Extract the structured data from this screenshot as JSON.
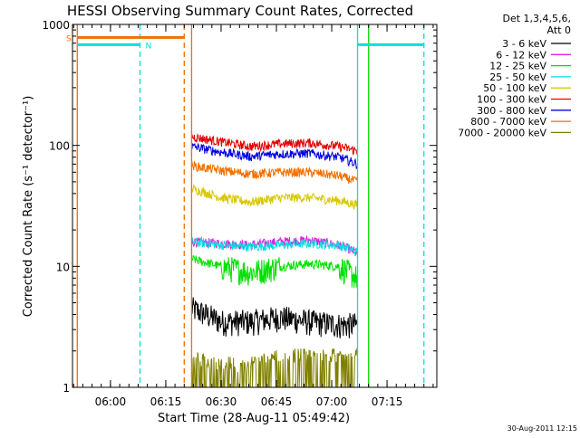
{
  "chart_data": {
    "type": "line",
    "title": "HESSI Observing Summary Count Rates, Corrected",
    "xlabel": "Start Time (28-Aug-11 05:49:42)",
    "ylabel": "Corrected Count Rate (s⁻¹ detector⁻¹)",
    "y_scale": "log",
    "x_range": [
      "05:49:42",
      "07:28:30"
    ],
    "ylim": [
      1,
      1000
    ],
    "x_ticks": [
      "06:00",
      "06:15",
      "06:30",
      "06:45",
      "07:00",
      "07:15"
    ],
    "y_ticks": [
      "1",
      "10",
      "100",
      "1000"
    ],
    "legend": {
      "placement": "right, outside plot",
      "header": [
        "Det 1,3,4,5,6,",
        "Att 0"
      ],
      "entries": [
        {
          "name": "3 - 6 keV",
          "color": "#000000"
        },
        {
          "name": "6 - 12 keV",
          "color": "#e020e0"
        },
        {
          "name": "12 - 25 keV",
          "color": "#00e000"
        },
        {
          "name": "25 - 50 keV",
          "color": "#00e0e0"
        },
        {
          "name": "50 - 100 keV",
          "color": "#d8c800"
        },
        {
          "name": "100 - 300 keV",
          "color": "#e00000"
        },
        {
          "name": "300 - 800 keV",
          "color": "#0000e0"
        },
        {
          "name": "800 - 7000 keV",
          "color": "#f07000"
        },
        {
          "name": "7000 - 20000 keV",
          "color": "#808000"
        }
      ]
    },
    "series": [
      {
        "name": "3 - 6 keV",
        "color": "#000000",
        "x": [
          "06:22",
          "06:30",
          "06:38",
          "06:46",
          "06:54",
          "07:02",
          "07:07"
        ],
        "y": [
          4.5,
          3.5,
          3.5,
          3.8,
          3.5,
          3.3,
          3.3
        ]
      },
      {
        "name": "6 - 12 keV",
        "color": "#e020e0",
        "x": [
          "06:22",
          "06:30",
          "06:38",
          "06:46",
          "06:54",
          "07:02",
          "07:07"
        ],
        "y": [
          16,
          15.5,
          15,
          16,
          16.5,
          15,
          13
        ]
      },
      {
        "name": "12 - 25 keV",
        "color": "#00e000",
        "x": [
          "06:22",
          "06:30",
          "06:38",
          "06:46",
          "06:54",
          "07:02",
          "07:07"
        ],
        "y": [
          11.5,
          10,
          9,
          10,
          10.5,
          10,
          8
        ]
      },
      {
        "name": "25 - 50 keV",
        "color": "#00e0e0",
        "x": [
          "06:22",
          "06:30",
          "06:38",
          "06:46",
          "06:54",
          "07:02",
          "07:07"
        ],
        "y": [
          16,
          15,
          14.5,
          15,
          15.5,
          15,
          13
        ]
      },
      {
        "name": "50 - 100 keV",
        "color": "#d8c800",
        "x": [
          "06:22",
          "06:30",
          "06:38",
          "06:46",
          "06:54",
          "07:02",
          "07:07"
        ],
        "y": [
          44,
          37,
          34,
          37,
          37,
          35,
          32
        ]
      },
      {
        "name": "100 - 300 keV",
        "color": "#e00000",
        "x": [
          "06:22",
          "06:30",
          "06:38",
          "06:46",
          "06:54",
          "07:02",
          "07:07"
        ],
        "y": [
          118,
          107,
          98,
          103,
          105,
          98,
          90
        ]
      },
      {
        "name": "300 - 800 keV",
        "color": "#0000e0",
        "x": [
          "06:22",
          "06:30",
          "06:38",
          "06:46",
          "06:54",
          "07:02",
          "07:07"
        ],
        "y": [
          98,
          88,
          81,
          85,
          86,
          80,
          70
        ]
      },
      {
        "name": "800 - 7000 keV",
        "color": "#f07000",
        "x": [
          "06:22",
          "06:30",
          "06:38",
          "06:46",
          "06:54",
          "07:02",
          "07:07"
        ],
        "y": [
          68,
          62,
          58,
          60,
          60,
          56,
          50
        ]
      },
      {
        "name": "7000 - 20000 keV",
        "color": "#808000",
        "x": [
          "06:22",
          "06:30",
          "06:38",
          "06:46",
          "06:54",
          "07:02",
          "07:07"
        ],
        "y": [
          1.5,
          1.3,
          1.3,
          1.6,
          1.6,
          1.6,
          1.6
        ]
      }
    ],
    "flags": [
      {
        "label": "S",
        "color": "#f07000",
        "x_start": "05:51",
        "x_end": "06:20",
        "level": 780
      },
      {
        "label": "N",
        "color": "#00e0e0",
        "x_start": "05:51",
        "x_end": "06:08",
        "level": 680
      },
      {
        "label": "",
        "color": "#00e0e0",
        "x_start": "07:07",
        "x_end": "07:25",
        "level": 680
      }
    ],
    "vertical_lines": [
      {
        "x": "05:51",
        "color": "#f07000",
        "style": "solid"
      },
      {
        "x": "06:08",
        "color": "#00e0e0",
        "style": "dashed"
      },
      {
        "x": "06:20",
        "color": "#f07000",
        "style": "dashed"
      },
      {
        "x": "06:22",
        "color": "#f07000",
        "style": "solid"
      },
      {
        "x": "07:07",
        "color": "#00e0e0",
        "style": "solid"
      },
      {
        "x": "07:10",
        "color": "#00e000",
        "style": "solid"
      },
      {
        "x": "07:25",
        "color": "#00e0e0",
        "style": "dashed"
      }
    ],
    "footer_date": "30-Aug-2011 12:15"
  }
}
